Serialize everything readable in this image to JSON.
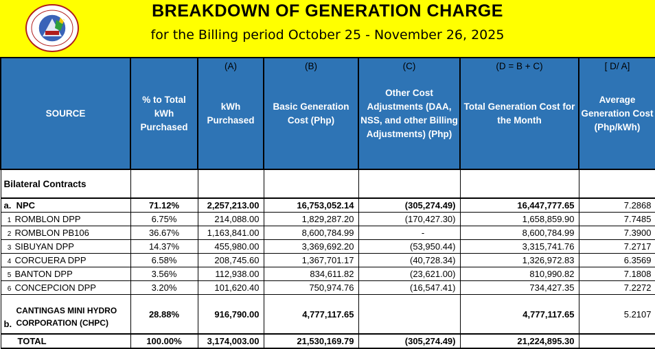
{
  "header": {
    "title": "BREAKDOWN OF GENERATION CHARGE",
    "subtitle": "for the Billing period October 25 - November 26, 2025"
  },
  "columns": [
    {
      "letter": "",
      "label": "SOURCE"
    },
    {
      "letter": "",
      "label": "% to Total kWh Purchased"
    },
    {
      "letter": "(A)",
      "label": "kWh Purchased"
    },
    {
      "letter": "(B)",
      "label": "Basic Generation Cost (Php)"
    },
    {
      "letter": "(C)",
      "label": "Other Cost Adjustments (DAA, NSS, and other Billing Adjustments) (Php)"
    },
    {
      "letter": "(D = B + C)",
      "label": "Total Generation Cost for the Month"
    },
    {
      "letter": "[ D/ A]",
      "label": "Average Generation Cost (Php/kWh)"
    }
  ],
  "section_label": "Bilateral Contracts",
  "npc": {
    "marker": "a.",
    "source": "NPC",
    "pct": "71.12%",
    "kwh": "2,257,213.00",
    "basic": "16,753,052.14",
    "other": "(305,274.49)",
    "total": "16,447,777.65",
    "avg": "7.2868"
  },
  "plants": [
    {
      "idx": "1",
      "source": "ROMBLON DPP",
      "pct": "6.75%",
      "kwh": "214,088.00",
      "basic": "1,829,287.20",
      "other": "(170,427.30)",
      "total": "1,658,859.90",
      "avg": "7.7485"
    },
    {
      "idx": "2",
      "source": "ROMBLON PB106",
      "pct": "36.67%",
      "kwh": "1,163,841.00",
      "basic": "8,600,784.99",
      "other": "-",
      "total": "8,600,784.99",
      "avg": "7.3900"
    },
    {
      "idx": "3",
      "source": "SIBUYAN DPP",
      "pct": "14.37%",
      "kwh": "455,980.00",
      "basic": "3,369,692.20",
      "other": "(53,950.44)",
      "total": "3,315,741.76",
      "avg": "7.2717"
    },
    {
      "idx": "4",
      "source": "CORCUERA DPP",
      "pct": "6.58%",
      "kwh": "208,745.60",
      "basic": "1,367,701.17",
      "other": "(40,728.34)",
      "total": "1,326,972.83",
      "avg": "6.3569"
    },
    {
      "idx": "5",
      "source": "BANTON DPP",
      "pct": "3.56%",
      "kwh": "112,938.00",
      "basic": "834,611.82",
      "other": "(23,621.00)",
      "total": "810,990.82",
      "avg": "7.1808"
    },
    {
      "idx": "6",
      "source": "CONCEPCION DPP",
      "pct": "3.20%",
      "kwh": "101,620.40",
      "basic": "750,974.76",
      "other": "(16,547.41)",
      "total": "734,427.35",
      "avg": "7.2272"
    }
  ],
  "chpc": {
    "marker": "b.",
    "source_line1": "CANTINGAS MINI HYDRO",
    "source_line2": "CORPORATION (CHPC)",
    "pct": "28.88%",
    "kwh": "916,790.00",
    "basic": "4,777,117.65",
    "other": "",
    "total": "4,777,117.65",
    "avg": "5.2107"
  },
  "total": {
    "source": "TOTAL",
    "pct": "100.00%",
    "kwh": "3,174,003.00",
    "basic": "21,530,169.79",
    "other": "(305,274.49)",
    "total": "21,224,895.30",
    "avg": ""
  },
  "colors": {
    "banner": "#ffff00",
    "header_fill": "#2e74b5",
    "header_text": "#ffffff"
  }
}
